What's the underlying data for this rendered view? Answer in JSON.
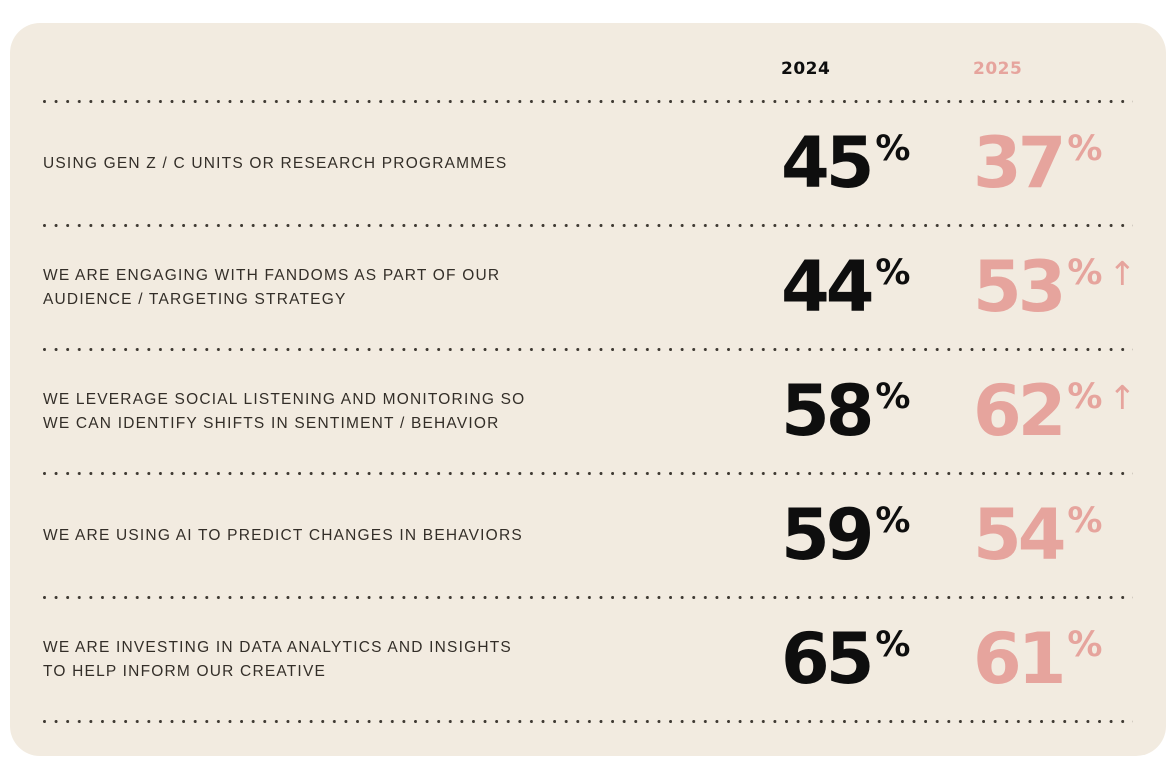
{
  "colors": {
    "page_background": "#ffffff",
    "card_background": "#f2ebe0",
    "accent_pink": "#e6a49d",
    "number_black": "#0e0e0e",
    "label_text": "#332e28",
    "dot_color": "#3f3a33"
  },
  "header": {
    "year_2024": "2024",
    "year_2025": "2025"
  },
  "rows": [
    {
      "label": "USING GEN Z / C UNITS OR RESEARCH PROGRAMMES",
      "v2024": {
        "num": "45",
        "pct": "%"
      },
      "v2025": {
        "num": "37",
        "pct": "%",
        "arrow": ""
      }
    },
    {
      "label": "WE ARE ENGAGING WITH FANDOMS AS PART OF OUR\nAUDIENCE / TARGETING STRATEGY",
      "v2024": {
        "num": "44",
        "pct": "%"
      },
      "v2025": {
        "num": "53",
        "pct": "%",
        "arrow": "↑"
      }
    },
    {
      "label": "WE LEVERAGE SOCIAL LISTENING AND MONITORING SO\nWE CAN IDENTIFY SHIFTS IN SENTIMENT / BEHAVIOR",
      "v2024": {
        "num": "58",
        "pct": "%"
      },
      "v2025": {
        "num": "62",
        "pct": "%",
        "arrow": "↑"
      }
    },
    {
      "label": "WE ARE USING AI TO PREDICT CHANGES IN BEHAVIORS",
      "v2024": {
        "num": "59",
        "pct": "%"
      },
      "v2025": {
        "num": "54",
        "pct": "%",
        "arrow": ""
      }
    },
    {
      "label": "WE ARE INVESTING IN DATA ANALYTICS AND INSIGHTS\nTO HELP INFORM OUR CREATIVE",
      "v2024": {
        "num": "65",
        "pct": "%"
      },
      "v2025": {
        "num": "61",
        "pct": "%",
        "arrow": ""
      }
    }
  ],
  "chart_data": {
    "type": "table",
    "title": "",
    "columns": [
      "2024",
      "2025"
    ],
    "categories": [
      "USING GEN Z / C UNITS OR RESEARCH PROGRAMMES",
      "WE ARE ENGAGING WITH FANDOMS AS PART OF OUR AUDIENCE / TARGETING STRATEGY",
      "WE LEVERAGE SOCIAL LISTENING AND MONITORING SO WE CAN IDENTIFY SHIFTS IN SENTIMENT / BEHAVIOR",
      "WE ARE USING AI TO PREDICT CHANGES IN BEHAVIORS",
      "WE ARE INVESTING IN DATA ANALYTICS AND INSIGHTS TO HELP INFORM OUR CREATIVE"
    ],
    "series": [
      {
        "name": "2024",
        "values": [
          45,
          44,
          58,
          59,
          65
        ]
      },
      {
        "name": "2025",
        "values": [
          37,
          53,
          62,
          54,
          61
        ]
      }
    ],
    "unit": "%",
    "increase_arrow_on_2025": [
      false,
      true,
      true,
      false,
      false
    ],
    "legend_position": "top",
    "grid": "dotted-row-separators"
  }
}
